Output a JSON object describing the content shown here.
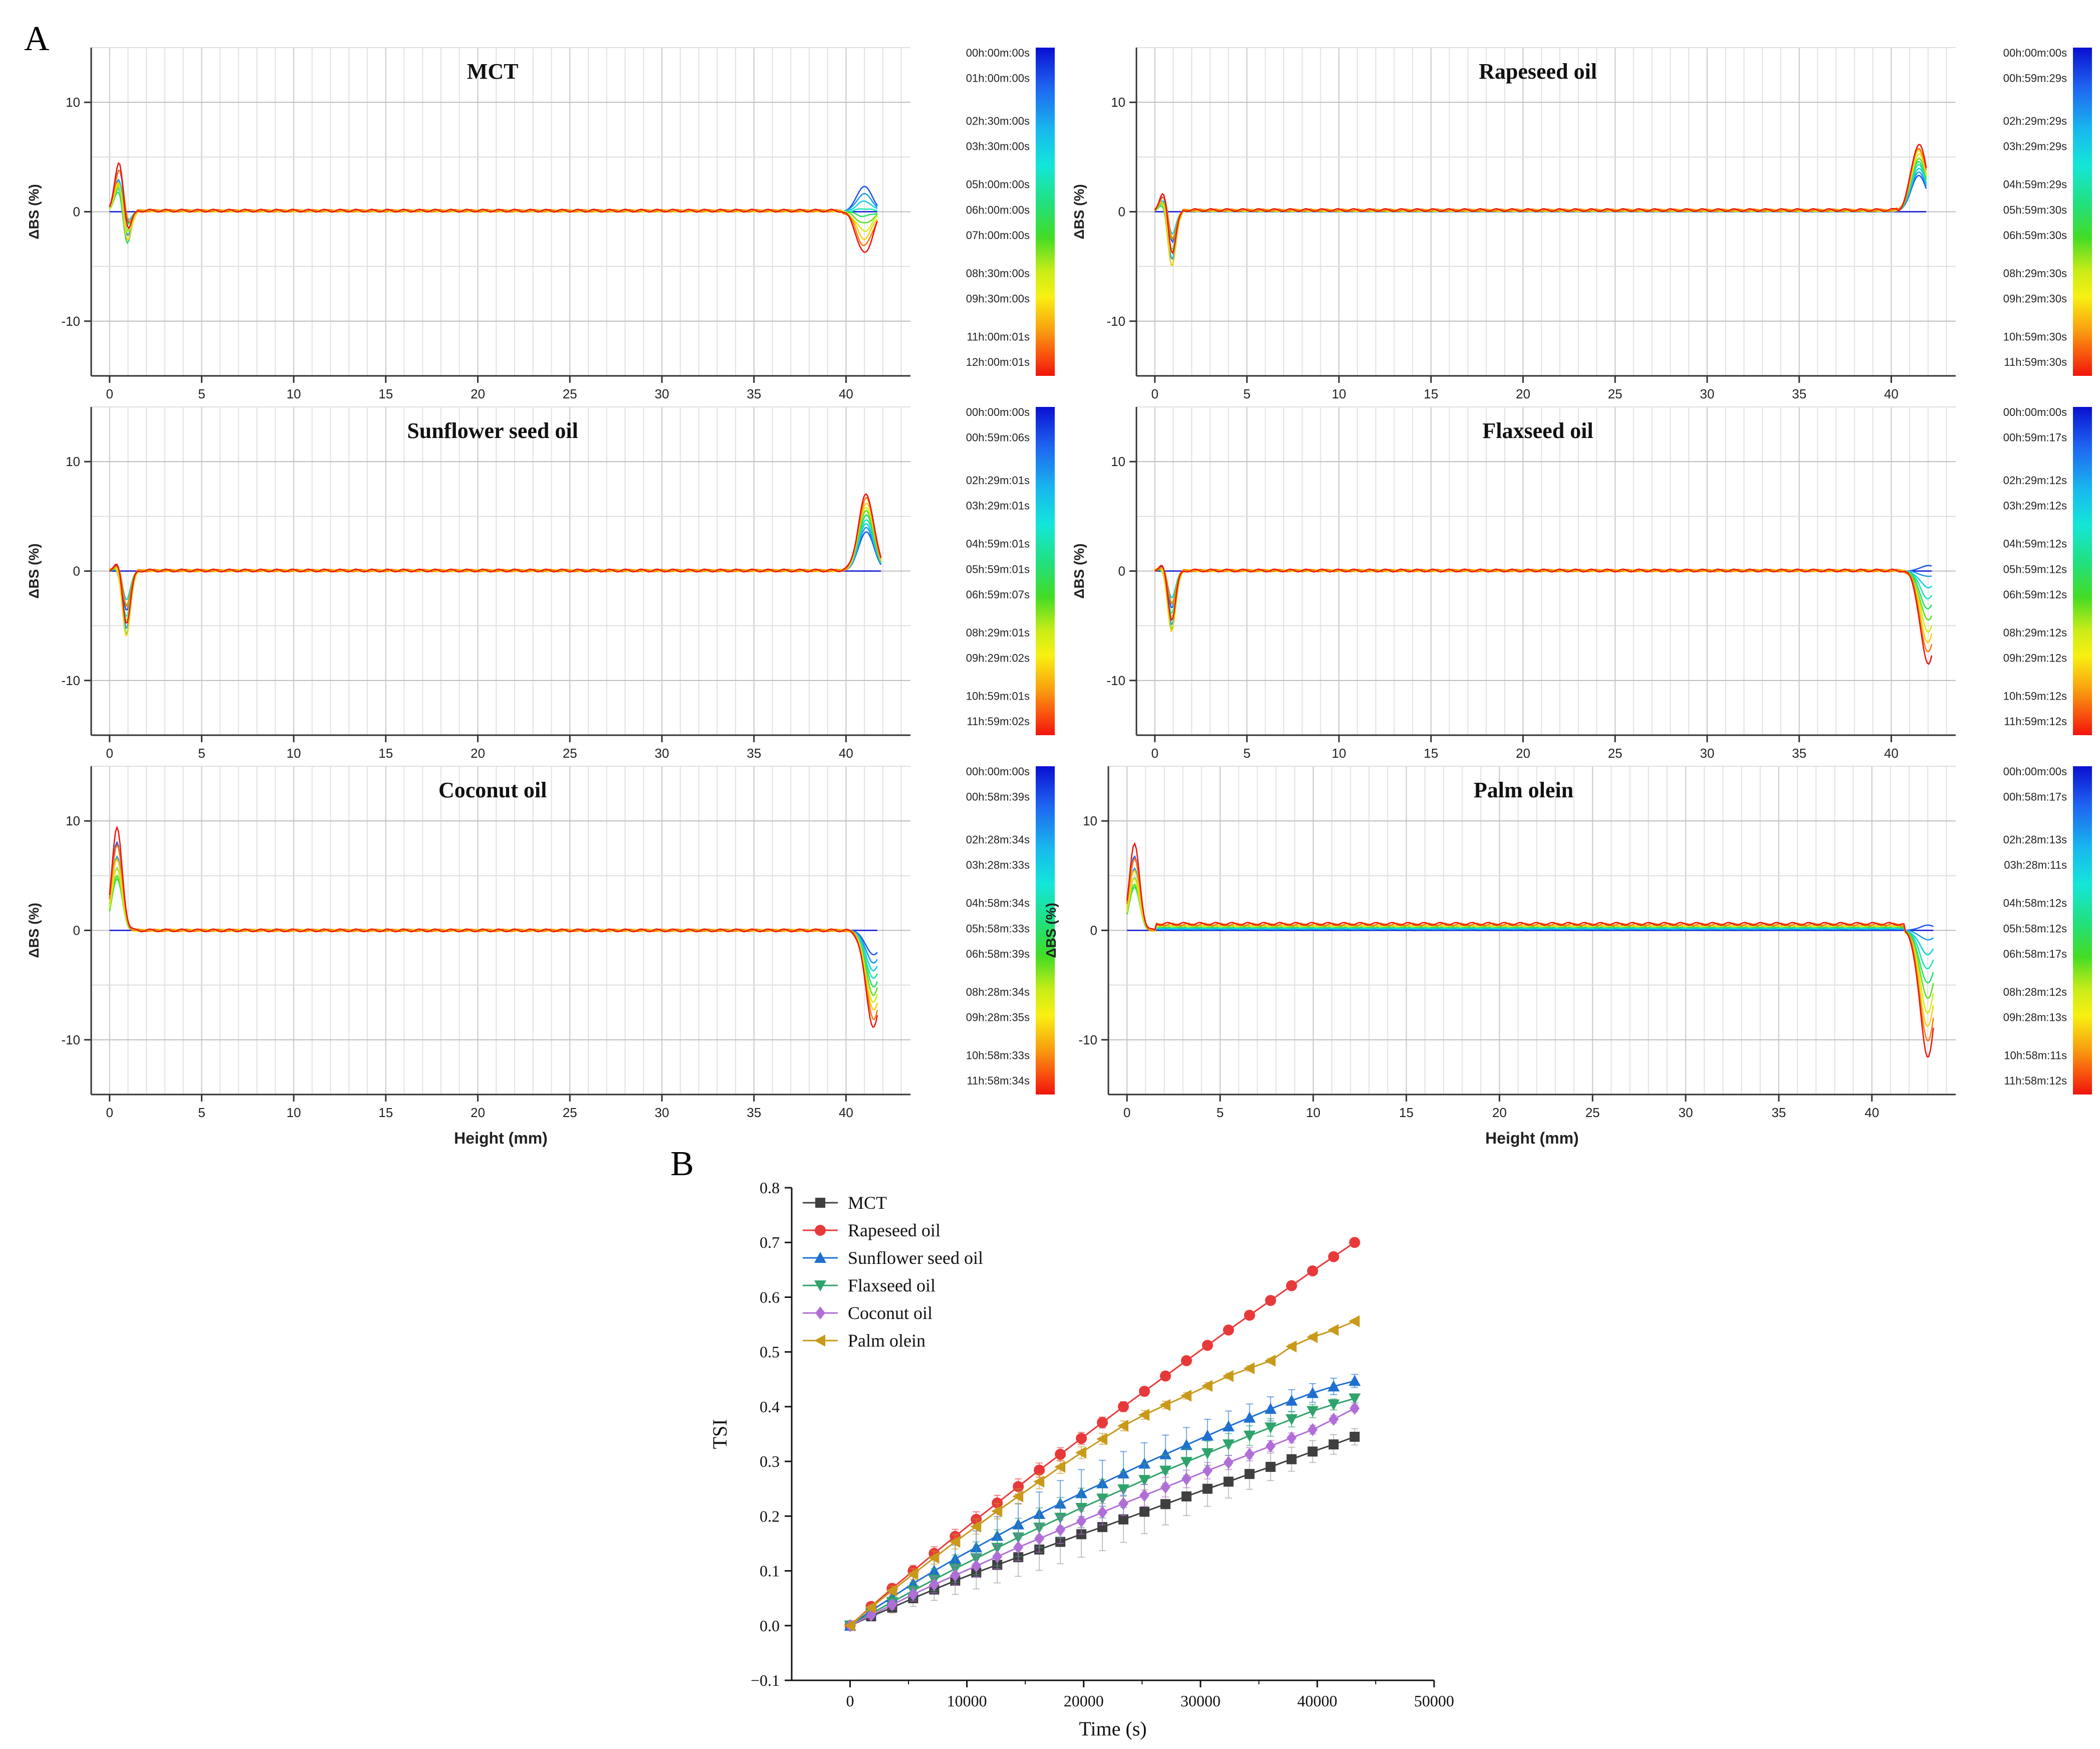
{
  "figure": {
    "panel_a_label": "A",
    "panel_b_label": "B"
  },
  "chart_data": [
    {
      "type": "line",
      "panel": "A",
      "title": "MCT",
      "ylabel": "ΔBS (%)",
      "xlabel": "",
      "xlim": [
        -1,
        43.5
      ],
      "ylim": [
        -15,
        15
      ],
      "xticks": [
        "0",
        "5",
        "10",
        "15",
        "20",
        "25",
        "30",
        "35",
        "40"
      ],
      "yticks": [
        "10",
        "0",
        "-10"
      ],
      "grid": true,
      "legend_times": [
        "00h:00m:00s",
        "01h:00m:00s",
        "02h:30m:00s",
        "03h:30m:00s",
        "05h:00m:00s",
        "06h:00m:00s",
        "07h:00m:00s",
        "08h:30m:00s",
        "09h:30m:00s",
        "11h:00m:01s",
        "12h:00m:01s"
      ],
      "profile": {
        "bottom_peak_x": 0.6,
        "bottom_peak_max": 5.5,
        "bottom_peak_min": -4.5,
        "top_peak_x": 41.0,
        "top_peak_first": 3.0,
        "top_peak_last": -3.8,
        "offset_last": 0.1,
        "x_end": 41.7
      }
    },
    {
      "type": "line",
      "panel": "A",
      "title": "Rapeseed oil",
      "ylabel": "ΔBS (%)",
      "xlabel": "",
      "xlim": [
        -1,
        43.5
      ],
      "ylim": [
        -15,
        15
      ],
      "xticks": [
        "0",
        "5",
        "10",
        "15",
        "20",
        "25",
        "30",
        "35",
        "40"
      ],
      "yticks": [
        "10",
        "0",
        "-10"
      ],
      "grid": true,
      "legend_times": [
        "00h:00m:00s",
        "00h:59m:29s",
        "02h:29m:29s",
        "03h:29m:29s",
        "04h:59m:29s",
        "05h:59m:30s",
        "06h:59m:30s",
        "08h:29m:30s",
        "09h:29m:30s",
        "10h:59m:30s",
        "11h:59m:30s"
      ],
      "profile": {
        "bottom_peak_x": 0.6,
        "bottom_peak_max": 2.5,
        "bottom_peak_min": -6.0,
        "top_peak_x": 41.5,
        "top_peak_first": 3.0,
        "top_peak_last": 6.2,
        "offset_last": 0.15,
        "x_end": 41.9
      }
    },
    {
      "type": "line",
      "panel": "A",
      "title": "Sunflower seed oil",
      "ylabel": "ΔBS (%)",
      "xlabel": "",
      "xlim": [
        -1,
        43.5
      ],
      "ylim": [
        -15,
        15
      ],
      "xticks": [
        "0",
        "5",
        "10",
        "15",
        "20",
        "25",
        "30",
        "35",
        "40"
      ],
      "yticks": [
        "10",
        "0",
        "-10"
      ],
      "grid": true,
      "legend_times": [
        "00h:00m:00s",
        "00h:59m:06s",
        "02h:29m:01s",
        "03h:29m:01s",
        "04h:59m:01s",
        "05h:59m:01s",
        "06h:59m:07s",
        "08h:29m:01s",
        "09h:29m:02s",
        "10h:59m:01s",
        "11h:59m:02s"
      ],
      "profile": {
        "bottom_peak_x": 0.6,
        "bottom_peak_max": 1.2,
        "bottom_peak_min": -6.5,
        "top_peak_x": 41.1,
        "top_peak_first": 3.2,
        "top_peak_last": 7.0,
        "offset_last": 0.05,
        "x_end": 41.9
      }
    },
    {
      "type": "line",
      "panel": "A",
      "title": "Flaxseed oil",
      "ylabel": "ΔBS (%)",
      "xlabel": "",
      "xlim": [
        -1,
        43.5
      ],
      "ylim": [
        -15,
        15
      ],
      "xticks": [
        "0",
        "5",
        "10",
        "15",
        "20",
        "25",
        "30",
        "35",
        "40"
      ],
      "yticks": [
        "10",
        "0",
        "-10"
      ],
      "grid": true,
      "legend_times": [
        "00h:00m:00s",
        "00h:59m:17s",
        "02h:29m:12s",
        "03h:29m:12s",
        "04h:59m:12s",
        "05h:59m:12s",
        "06h:59m:12s",
        "08h:29m:12s",
        "09h:29m:12s",
        "10h:59m:12s",
        "11h:59m:12s"
      ],
      "profile": {
        "bottom_peak_x": 0.6,
        "bottom_peak_max": 1.0,
        "bottom_peak_min": -6.0,
        "top_peak_x": 42.0,
        "top_peak_first": 1.5,
        "top_peak_last": -8.5,
        "offset_last": 0.05,
        "x_end": 42.2
      }
    },
    {
      "type": "line",
      "panel": "A",
      "title": "Coconut oil",
      "ylabel": "ΔBS (%)",
      "xlabel": "Height (mm)",
      "xlim": [
        -1,
        43.5
      ],
      "ylim": [
        -15,
        15
      ],
      "xticks": [
        "0",
        "5",
        "10",
        "15",
        "20",
        "25",
        "30",
        "35",
        "40"
      ],
      "yticks": [
        "10",
        "0",
        "-10"
      ],
      "grid": true,
      "legend_times": [
        "00h:00m:00s",
        "00h:58m:39s",
        "02h:28m:34s",
        "03h:28m:33s",
        "04h:58m:34s",
        "05h:58m:33s",
        "06h:58m:39s",
        "08h:28m:34s",
        "09h:28m:35s",
        "10h:58m:33s",
        "11h:58m:34s"
      ],
      "profile": {
        "bottom_peak_x": 0.4,
        "bottom_peak_max": 9.5,
        "bottom_peak_min": 0,
        "top_peak_x": 41.5,
        "top_peak_first": -1.5,
        "top_peak_last": -8.8,
        "offset_last": 0.0,
        "x_end": 41.7
      }
    },
    {
      "type": "line",
      "panel": "A",
      "title": "Palm olein",
      "ylabel": "ΔBS (%)",
      "xlabel": "Height (mm)",
      "xlim": [
        -1,
        44.5
      ],
      "ylim": [
        -15,
        15
      ],
      "xticks": [
        "0",
        "5",
        "10",
        "15",
        "20",
        "25",
        "30",
        "35",
        "40"
      ],
      "yticks": [
        "10",
        "0",
        "-10"
      ],
      "grid": true,
      "legend_times": [
        "00h:00m:00s",
        "00h:58m:17s",
        "02h:28m:13s",
        "03h:28m:11s",
        "04h:58m:12s",
        "05h:58m:12s",
        "06h:58m:17s",
        "08h:28m:12s",
        "09h:28m:13s",
        "10h:58m:11s",
        "11h:58m:12s"
      ],
      "profile": {
        "bottom_peak_x": 0.4,
        "bottom_peak_max": 8.0,
        "bottom_peak_min": 0,
        "top_peak_x": 43.0,
        "top_peak_first": 1.8,
        "top_peak_last": -11.5,
        "offset_last": 0.6,
        "x_end": 43.3
      }
    },
    {
      "type": "line",
      "panel": "B",
      "title": "",
      "xlabel": "Time (s)",
      "ylabel": "TSI",
      "xlim": [
        -5000,
        50000
      ],
      "ylim": [
        -0.1,
        0.8
      ],
      "xticks": [
        0,
        10000,
        20000,
        30000,
        40000,
        50000
      ],
      "yticks": [
        -0.1,
        0.0,
        0.1,
        0.2,
        0.3,
        0.4,
        0.5,
        0.6,
        0.7,
        0.8
      ],
      "ytick_labels": [
        "−0.1",
        "0.0",
        "0.1",
        "0.2",
        "0.3",
        "0.4",
        "0.5",
        "0.6",
        "0.7",
        "0.8"
      ],
      "xtick_labels": [
        "0",
        "10000",
        "20000",
        "30000",
        "40000",
        "50000"
      ],
      "x": [
        0,
        1800,
        3600,
        5400,
        7200,
        9000,
        10800,
        12600,
        14400,
        16200,
        18000,
        19800,
        21600,
        23400,
        25200,
        27000,
        28800,
        30600,
        32400,
        34200,
        36000,
        37800,
        39600,
        41400,
        43200
      ],
      "series": [
        {
          "name": "MCT",
          "marker": "square",
          "color": "#3f3f3f",
          "end": 0.345,
          "values": [
            0,
            0.017,
            0.033,
            0.05,
            0.066,
            0.082,
            0.097,
            0.111,
            0.125,
            0.139,
            0.153,
            0.167,
            0.18,
            0.194,
            0.208,
            0.222,
            0.236,
            0.25,
            0.263,
            0.277,
            0.29,
            0.304,
            0.318,
            0.331,
            0.345
          ],
          "err": [
            0,
            0.005,
            0.01,
            0.015,
            0.02,
            0.025,
            0.03,
            0.033,
            0.035,
            0.038,
            0.04,
            0.042,
            0.043,
            0.042,
            0.04,
            0.038,
            0.035,
            0.032,
            0.03,
            0.028,
            0.025,
            0.022,
            0.02,
            0.018,
            0.015
          ]
        },
        {
          "name": "Rapeseed oil",
          "marker": "circle",
          "color": "#e8393a",
          "end": 0.7,
          "values": [
            0,
            0.035,
            0.068,
            0.1,
            0.132,
            0.163,
            0.194,
            0.224,
            0.254,
            0.284,
            0.313,
            0.342,
            0.371,
            0.4,
            0.428,
            0.456,
            0.484,
            0.512,
            0.54,
            0.567,
            0.594,
            0.621,
            0.648,
            0.674,
            0.7
          ],
          "err": [
            0,
            0.005,
            0.008,
            0.01,
            0.012,
            0.013,
            0.014,
            0.014,
            0.014,
            0.013,
            0.012,
            0.011,
            0.01,
            0.009,
            0.008,
            0.007,
            0.006,
            0.005,
            0.005,
            0.004,
            0.004,
            0.003,
            0.003,
            0.003,
            0.003
          ]
        },
        {
          "name": "Sunflower seed oil",
          "marker": "triangle-up",
          "color": "#1f6fd1",
          "end": 0.447,
          "values": [
            0,
            0.027,
            0.052,
            0.077,
            0.1,
            0.122,
            0.143,
            0.164,
            0.185,
            0.204,
            0.223,
            0.242,
            0.26,
            0.278,
            0.296,
            0.313,
            0.33,
            0.347,
            0.364,
            0.38,
            0.396,
            0.411,
            0.425,
            0.437,
            0.447
          ],
          "err": [
            0,
            0.005,
            0.01,
            0.015,
            0.02,
            0.025,
            0.03,
            0.035,
            0.038,
            0.04,
            0.042,
            0.043,
            0.042,
            0.04,
            0.038,
            0.035,
            0.032,
            0.03,
            0.028,
            0.025,
            0.022,
            0.02,
            0.017,
            0.015,
            0.012
          ]
        },
        {
          "name": "Flaxseed oil",
          "marker": "triangle-down",
          "color": "#2fa36b",
          "end": 0.415,
          "values": [
            0,
            0.022,
            0.043,
            0.064,
            0.084,
            0.104,
            0.123,
            0.142,
            0.161,
            0.179,
            0.197,
            0.215,
            0.232,
            0.249,
            0.266,
            0.283,
            0.299,
            0.315,
            0.331,
            0.347,
            0.362,
            0.377,
            0.392,
            0.404,
            0.415
          ],
          "err": [
            0,
            0.005,
            0.01,
            0.015,
            0.02,
            0.025,
            0.03,
            0.033,
            0.035,
            0.036,
            0.037,
            0.036,
            0.035,
            0.033,
            0.03,
            0.028,
            0.025,
            0.022,
            0.02,
            0.018,
            0.016,
            0.014,
            0.012,
            0.01,
            0.008
          ]
        },
        {
          "name": "Coconut oil",
          "marker": "diamond",
          "color": "#b06fd6",
          "end": 0.397,
          "values": [
            0,
            0.019,
            0.038,
            0.057,
            0.075,
            0.092,
            0.109,
            0.126,
            0.143,
            0.159,
            0.175,
            0.191,
            0.207,
            0.223,
            0.238,
            0.253,
            0.268,
            0.283,
            0.298,
            0.313,
            0.328,
            0.343,
            0.358,
            0.377,
            0.397
          ],
          "err": [
            0,
            0.005,
            0.008,
            0.012,
            0.015,
            0.018,
            0.02,
            0.022,
            0.024,
            0.025,
            0.025,
            0.024,
            0.023,
            0.022,
            0.02,
            0.018,
            0.016,
            0.015,
            0.013,
            0.012,
            0.01,
            0.009,
            0.008,
            0.007,
            0.006
          ]
        },
        {
          "name": "Palm olein",
          "marker": "triangle-left",
          "color": "#c9991a",
          "end": 0.556,
          "values": [
            0,
            0.033,
            0.064,
            0.094,
            0.124,
            0.153,
            0.181,
            0.209,
            0.236,
            0.263,
            0.29,
            0.316,
            0.341,
            0.365,
            0.385,
            0.403,
            0.42,
            0.438,
            0.456,
            0.47,
            0.484,
            0.51,
            0.527,
            0.54,
            0.556
          ],
          "err": [
            0,
            0.005,
            0.008,
            0.01,
            0.012,
            0.013,
            0.014,
            0.014,
            0.014,
            0.013,
            0.012,
            0.011,
            0.01,
            0.009,
            0.008,
            0.007,
            0.006,
            0.006,
            0.005,
            0.005,
            0.004,
            0.004,
            0.004,
            0.003,
            0.003
          ]
        }
      ],
      "legend": "top-left"
    }
  ]
}
